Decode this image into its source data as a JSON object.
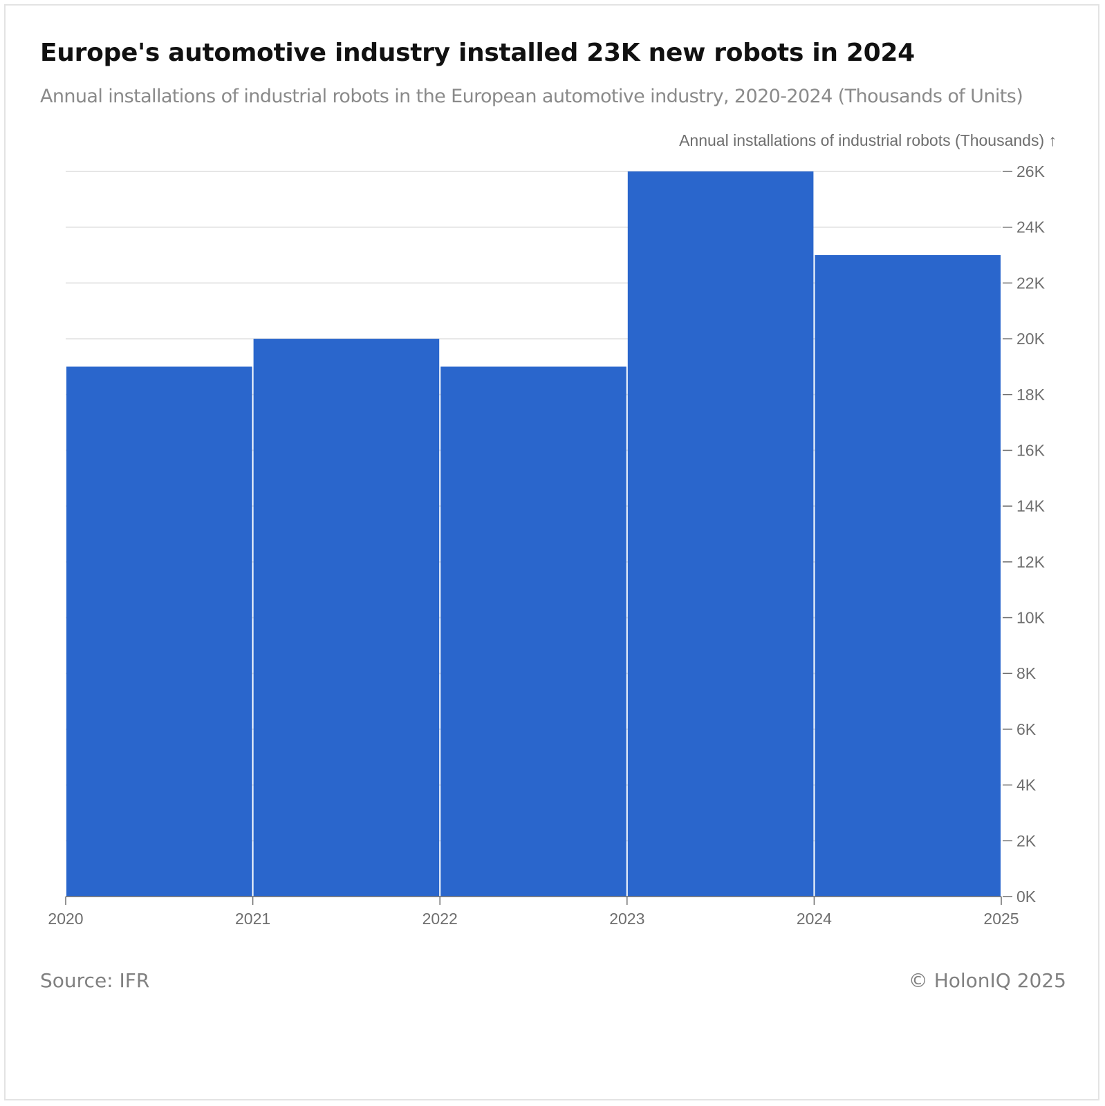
{
  "header": {
    "title": "Europe's automotive industry installed 23K new robots in 2024",
    "subtitle": "Annual installations of industrial robots in the European automotive industry, 2020-2024 (Thousands of Units)"
  },
  "footer": {
    "source": "Source: IFR",
    "copyright": "© HolonIQ 2025"
  },
  "colors": {
    "bar": "#2a66cc",
    "grid": "#e6e6e6",
    "tick": "#6e6e6e"
  },
  "chart_data": {
    "type": "bar",
    "ylabel": "Annual installations of industrial robots (Thousands) ↑",
    "y_axis_side": "right",
    "grid": true,
    "ylim": [
      0,
      26000
    ],
    "y_ticks": [
      0,
      2000,
      4000,
      6000,
      8000,
      10000,
      12000,
      14000,
      16000,
      18000,
      20000,
      22000,
      24000,
      26000
    ],
    "y_tick_labels": [
      "0K",
      "2K",
      "4K",
      "6K",
      "8K",
      "10K",
      "12K",
      "14K",
      "16K",
      "18K",
      "20K",
      "22K",
      "24K",
      "26K"
    ],
    "x_ticks": [
      "2020",
      "2021",
      "2022",
      "2023",
      "2024",
      "2025"
    ],
    "bars": [
      {
        "x_start": 2020,
        "x_end": 2021,
        "value": 19000
      },
      {
        "x_start": 2021,
        "x_end": 2022,
        "value": 20000
      },
      {
        "x_start": 2022,
        "x_end": 2023,
        "value": 19000
      },
      {
        "x_start": 2023,
        "x_end": 2024,
        "value": 26000
      },
      {
        "x_start": 2024,
        "x_end": 2025,
        "value": 23000
      }
    ]
  }
}
